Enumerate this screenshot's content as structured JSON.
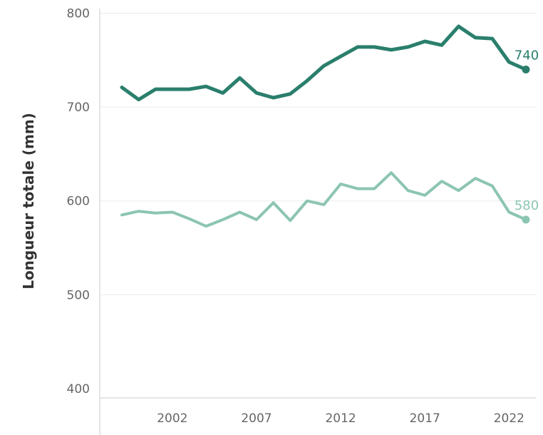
{
  "chart_data": {
    "type": "line",
    "title": "",
    "xlabel": "",
    "ylabel": "Longueur totale (mm)",
    "xlim": [
      1998,
      2024
    ],
    "ylim": [
      390,
      805
    ],
    "x_ticks": [
      2002,
      2007,
      2012,
      2017,
      2022
    ],
    "y_ticks": [
      400,
      500,
      600,
      700,
      800
    ],
    "grid": "horizontal",
    "x": [
      1999,
      2000,
      2001,
      2002,
      2003,
      2004,
      2005,
      2006,
      2007,
      2008,
      2009,
      2010,
      2011,
      2012,
      2013,
      2014,
      2015,
      2016,
      2017,
      2018,
      2019,
      2020,
      2021,
      2022,
      2023
    ],
    "series": [
      {
        "color": "#2a7f6c",
        "end_label": "740",
        "values": [
          721,
          708,
          719,
          719,
          719,
          722,
          715,
          731,
          715,
          710,
          714,
          728,
          744,
          754,
          764,
          764,
          761,
          764,
          770,
          766,
          786,
          774,
          773,
          748,
          740
        ]
      },
      {
        "color": "#8cc5b2",
        "end_label": "580",
        "values": [
          585,
          589,
          587,
          588,
          581,
          573,
          580,
          588,
          580,
          598,
          579,
          600,
          596,
          618,
          613,
          613,
          630,
          611,
          606,
          621,
          611,
          624,
          616,
          588,
          580
        ]
      }
    ]
  }
}
